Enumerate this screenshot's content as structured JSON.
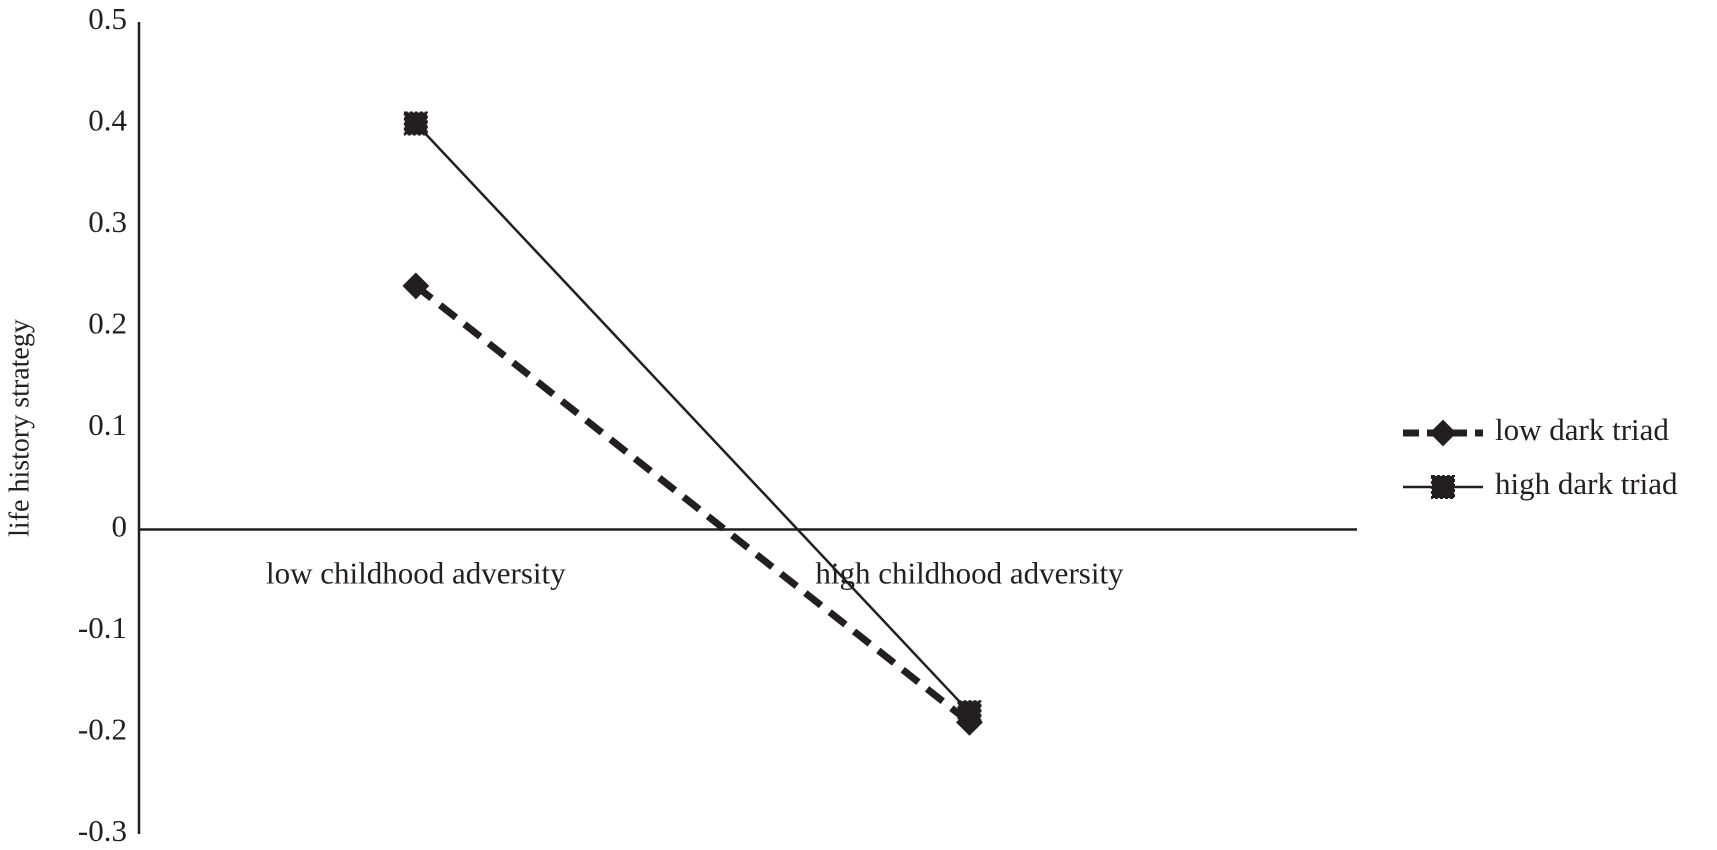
{
  "chart_data": {
    "type": "line",
    "y_label": "life history strategy",
    "categories": [
      "low childhood adversity",
      "high childhood adversity"
    ],
    "series": [
      {
        "name": "low dark triad",
        "color": "#231f20",
        "dash": true,
        "marker": "diamond",
        "values": [
          0.24,
          -0.19
        ]
      },
      {
        "name": "high dark triad",
        "color": "#231f20",
        "dash": false,
        "marker": "square",
        "values": [
          0.4,
          -0.18
        ]
      }
    ],
    "ylim": [
      -0.3,
      0.5
    ],
    "yticks": [
      -0.3,
      -0.2,
      -0.1,
      0,
      0.1,
      0.2,
      0.3,
      0.4,
      0.5
    ],
    "legend": "right"
  }
}
